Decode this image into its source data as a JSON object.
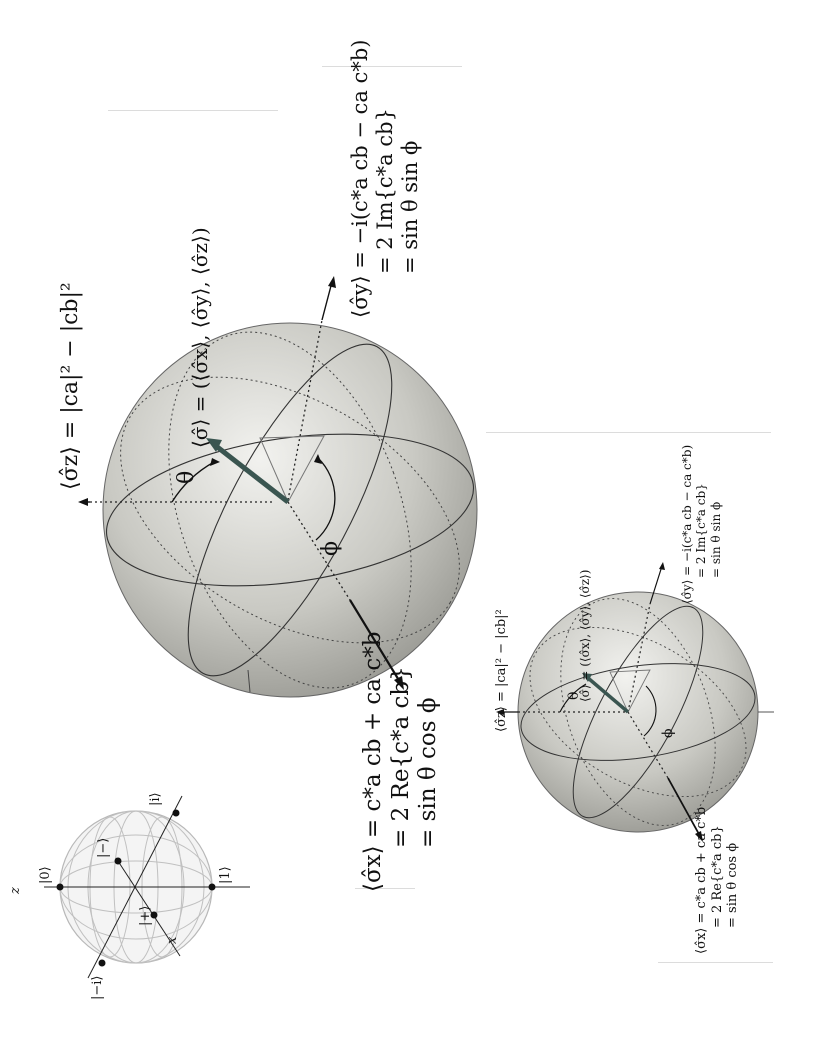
{
  "mini_sphere": {
    "axis_z": "z",
    "axis_x": "x",
    "ket_0": "|0⟩",
    "ket_1": "|1⟩",
    "ket_minus": "|−⟩",
    "ket_plus": "|+⟩",
    "ket_i": "|i⟩",
    "ket_minus_i": "|−i⟩"
  },
  "large_sphere": {
    "sigma_z": "⟨σ̂z⟩ = |ca|² − |cb|²",
    "sigma_vec": "⟨σ̂⟩ = (⟨σ̂x⟩, ⟨σ̂y⟩, ⟨σ̂z⟩)",
    "sigma_y": [
      "⟨σ̂y⟩ = −i(c*a cb − ca c*b)",
      "= 2 Im{c*a cb}",
      "= sin θ sin ϕ"
    ],
    "sigma_x": [
      "⟨σ̂x⟩ = c*a cb + ca c*b",
      "= 2 Re{c*a cb}",
      "= sin θ cos ϕ"
    ],
    "theta": "θ",
    "phi": "ϕ"
  },
  "small_sphere": {
    "sigma_z": "⟨σ̂z⟩ = |ca|² − |cb|²",
    "sigma_vec": "⟨σ̂⟩ = (⟨σ̂x⟩, ⟨σ̂y⟩, ⟨σ̂z⟩)",
    "sigma_y": [
      "⟨σ̂y⟩ = −i(c*a cb − ca c*b)",
      "= 2 Im{c*a cb}",
      "= sin θ sin ϕ"
    ],
    "sigma_x": [
      "⟨σ̂x⟩ = c*a cb + ca c*b",
      "= 2 Re{c*a cb}",
      "= sin θ cos ϕ"
    ],
    "theta": "θ",
    "phi": "ϕ"
  }
}
